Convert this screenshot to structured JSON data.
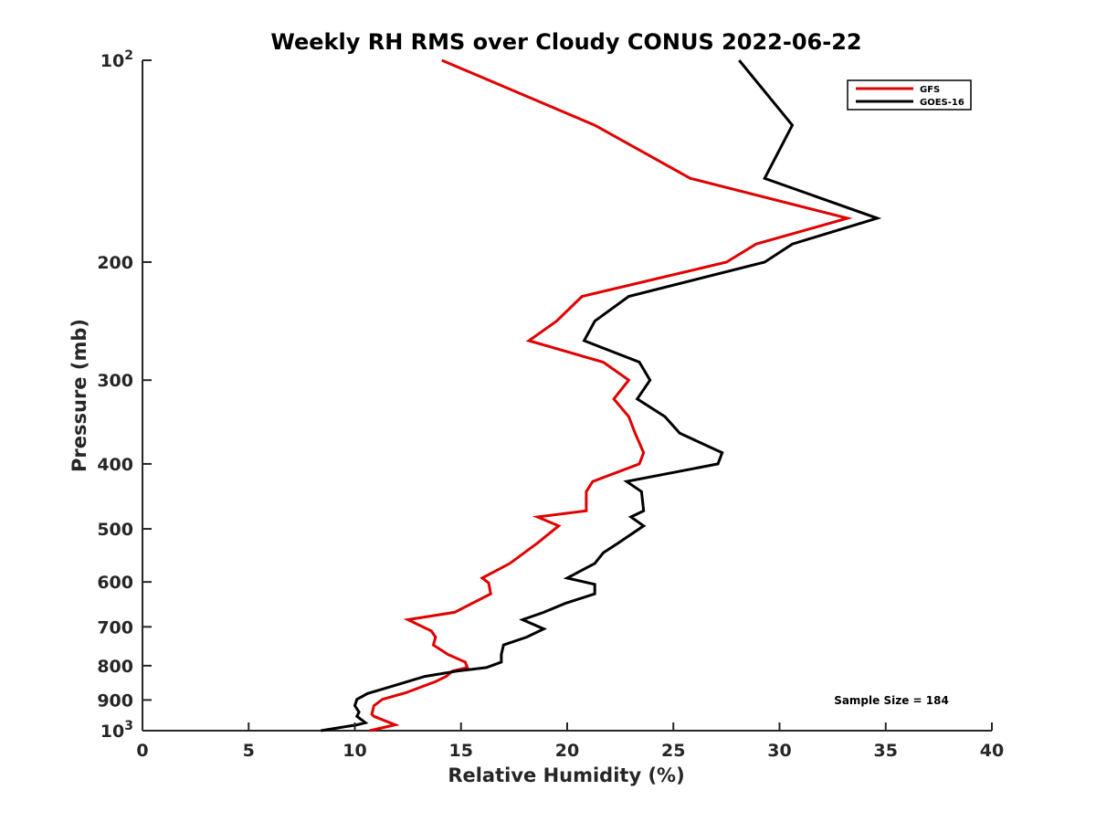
{
  "chart_data": {
    "type": "line",
    "title": "Weekly RH RMS over Cloudy CONUS 2022-06-22",
    "xlabel": "Relative Humidity (%)",
    "ylabel": "Pressure (mb)",
    "xlim": [
      0,
      40
    ],
    "ylim": [
      100,
      1000
    ],
    "yscale": "log",
    "y_reversed": true,
    "x_ticks": [
      "0",
      "5",
      "10",
      "15",
      "20",
      "25",
      "30",
      "35",
      "40"
    ],
    "y_ticks": [
      {
        "value": 100,
        "label": "10",
        "sup": "2"
      },
      {
        "value": 200,
        "label": "200",
        "sup": ""
      },
      {
        "value": 300,
        "label": "300",
        "sup": ""
      },
      {
        "value": 400,
        "label": "400",
        "sup": ""
      },
      {
        "value": 500,
        "label": "500",
        "sup": ""
      },
      {
        "value": 600,
        "label": "600",
        "sup": ""
      },
      {
        "value": 700,
        "label": "700",
        "sup": ""
      },
      {
        "value": 800,
        "label": "800",
        "sup": ""
      },
      {
        "value": 900,
        "label": "900",
        "sup": ""
      },
      {
        "value": 1000,
        "label": "10",
        "sup": "3"
      }
    ],
    "grid": false,
    "legend_position": "top-right",
    "annotation": "Sample Size = 184",
    "series": [
      {
        "name": "GFS",
        "color": "#e00000",
        "points": [
          [
            14.1,
            100
          ],
          [
            21.3,
            125
          ],
          [
            25.8,
            150
          ],
          [
            33.2,
            172
          ],
          [
            28.9,
            188
          ],
          [
            27.5,
            200
          ],
          [
            20.7,
            225
          ],
          [
            19.5,
            245
          ],
          [
            18.2,
            262
          ],
          [
            21.7,
            282
          ],
          [
            22.9,
            300
          ],
          [
            22.2,
            320
          ],
          [
            22.9,
            340
          ],
          [
            23.2,
            360
          ],
          [
            23.6,
            385
          ],
          [
            23.4,
            400
          ],
          [
            21.2,
            425
          ],
          [
            20.9,
            440
          ],
          [
            20.9,
            470
          ],
          [
            18.6,
            480
          ],
          [
            19.6,
            495
          ],
          [
            18.6,
            525
          ],
          [
            17.3,
            563
          ],
          [
            16.0,
            592
          ],
          [
            16.3,
            602
          ],
          [
            16.4,
            625
          ],
          [
            14.7,
            666
          ],
          [
            12.5,
            683
          ],
          [
            13.6,
            710
          ],
          [
            13.8,
            725
          ],
          [
            13.7,
            745
          ],
          [
            14.4,
            770
          ],
          [
            15.2,
            790
          ],
          [
            15.3,
            805
          ],
          [
            14.6,
            815
          ],
          [
            14.3,
            830
          ],
          [
            13.8,
            845
          ],
          [
            12.4,
            878
          ],
          [
            11.3,
            898
          ],
          [
            10.9,
            918
          ],
          [
            10.8,
            945
          ],
          [
            10.9,
            952
          ],
          [
            11.9,
            980
          ],
          [
            10.7,
            1000
          ]
        ]
      },
      {
        "name": "GOES-16",
        "color": "#000000",
        "points": [
          [
            28.1,
            100
          ],
          [
            30.6,
            125
          ],
          [
            29.3,
            150
          ],
          [
            34.6,
            172
          ],
          [
            30.6,
            188
          ],
          [
            29.3,
            200
          ],
          [
            22.9,
            225
          ],
          [
            21.3,
            245
          ],
          [
            20.8,
            262
          ],
          [
            23.4,
            282
          ],
          [
            23.9,
            300
          ],
          [
            23.3,
            320
          ],
          [
            24.6,
            340
          ],
          [
            25.3,
            360
          ],
          [
            27.3,
            385
          ],
          [
            27.1,
            400
          ],
          [
            22.8,
            425
          ],
          [
            23.5,
            440
          ],
          [
            23.6,
            470
          ],
          [
            23.0,
            480
          ],
          [
            23.6,
            495
          ],
          [
            22.4,
            525
          ],
          [
            21.7,
            543
          ],
          [
            21.3,
            563
          ],
          [
            20.0,
            592
          ],
          [
            21.3,
            605
          ],
          [
            21.3,
            625
          ],
          [
            19.9,
            646
          ],
          [
            18.9,
            666
          ],
          [
            17.9,
            683
          ],
          [
            18.9,
            705
          ],
          [
            18.1,
            725
          ],
          [
            17.0,
            745
          ],
          [
            16.9,
            770
          ],
          [
            16.9,
            790
          ],
          [
            16.2,
            805
          ],
          [
            14.8,
            815
          ],
          [
            13.3,
            830
          ],
          [
            11.4,
            865
          ],
          [
            10.6,
            880
          ],
          [
            10.1,
            898
          ],
          [
            10.0,
            918
          ],
          [
            10.2,
            938
          ],
          [
            10.1,
            952
          ],
          [
            10.5,
            973
          ],
          [
            10.1,
            980
          ],
          [
            8.4,
            1000
          ]
        ]
      }
    ]
  }
}
